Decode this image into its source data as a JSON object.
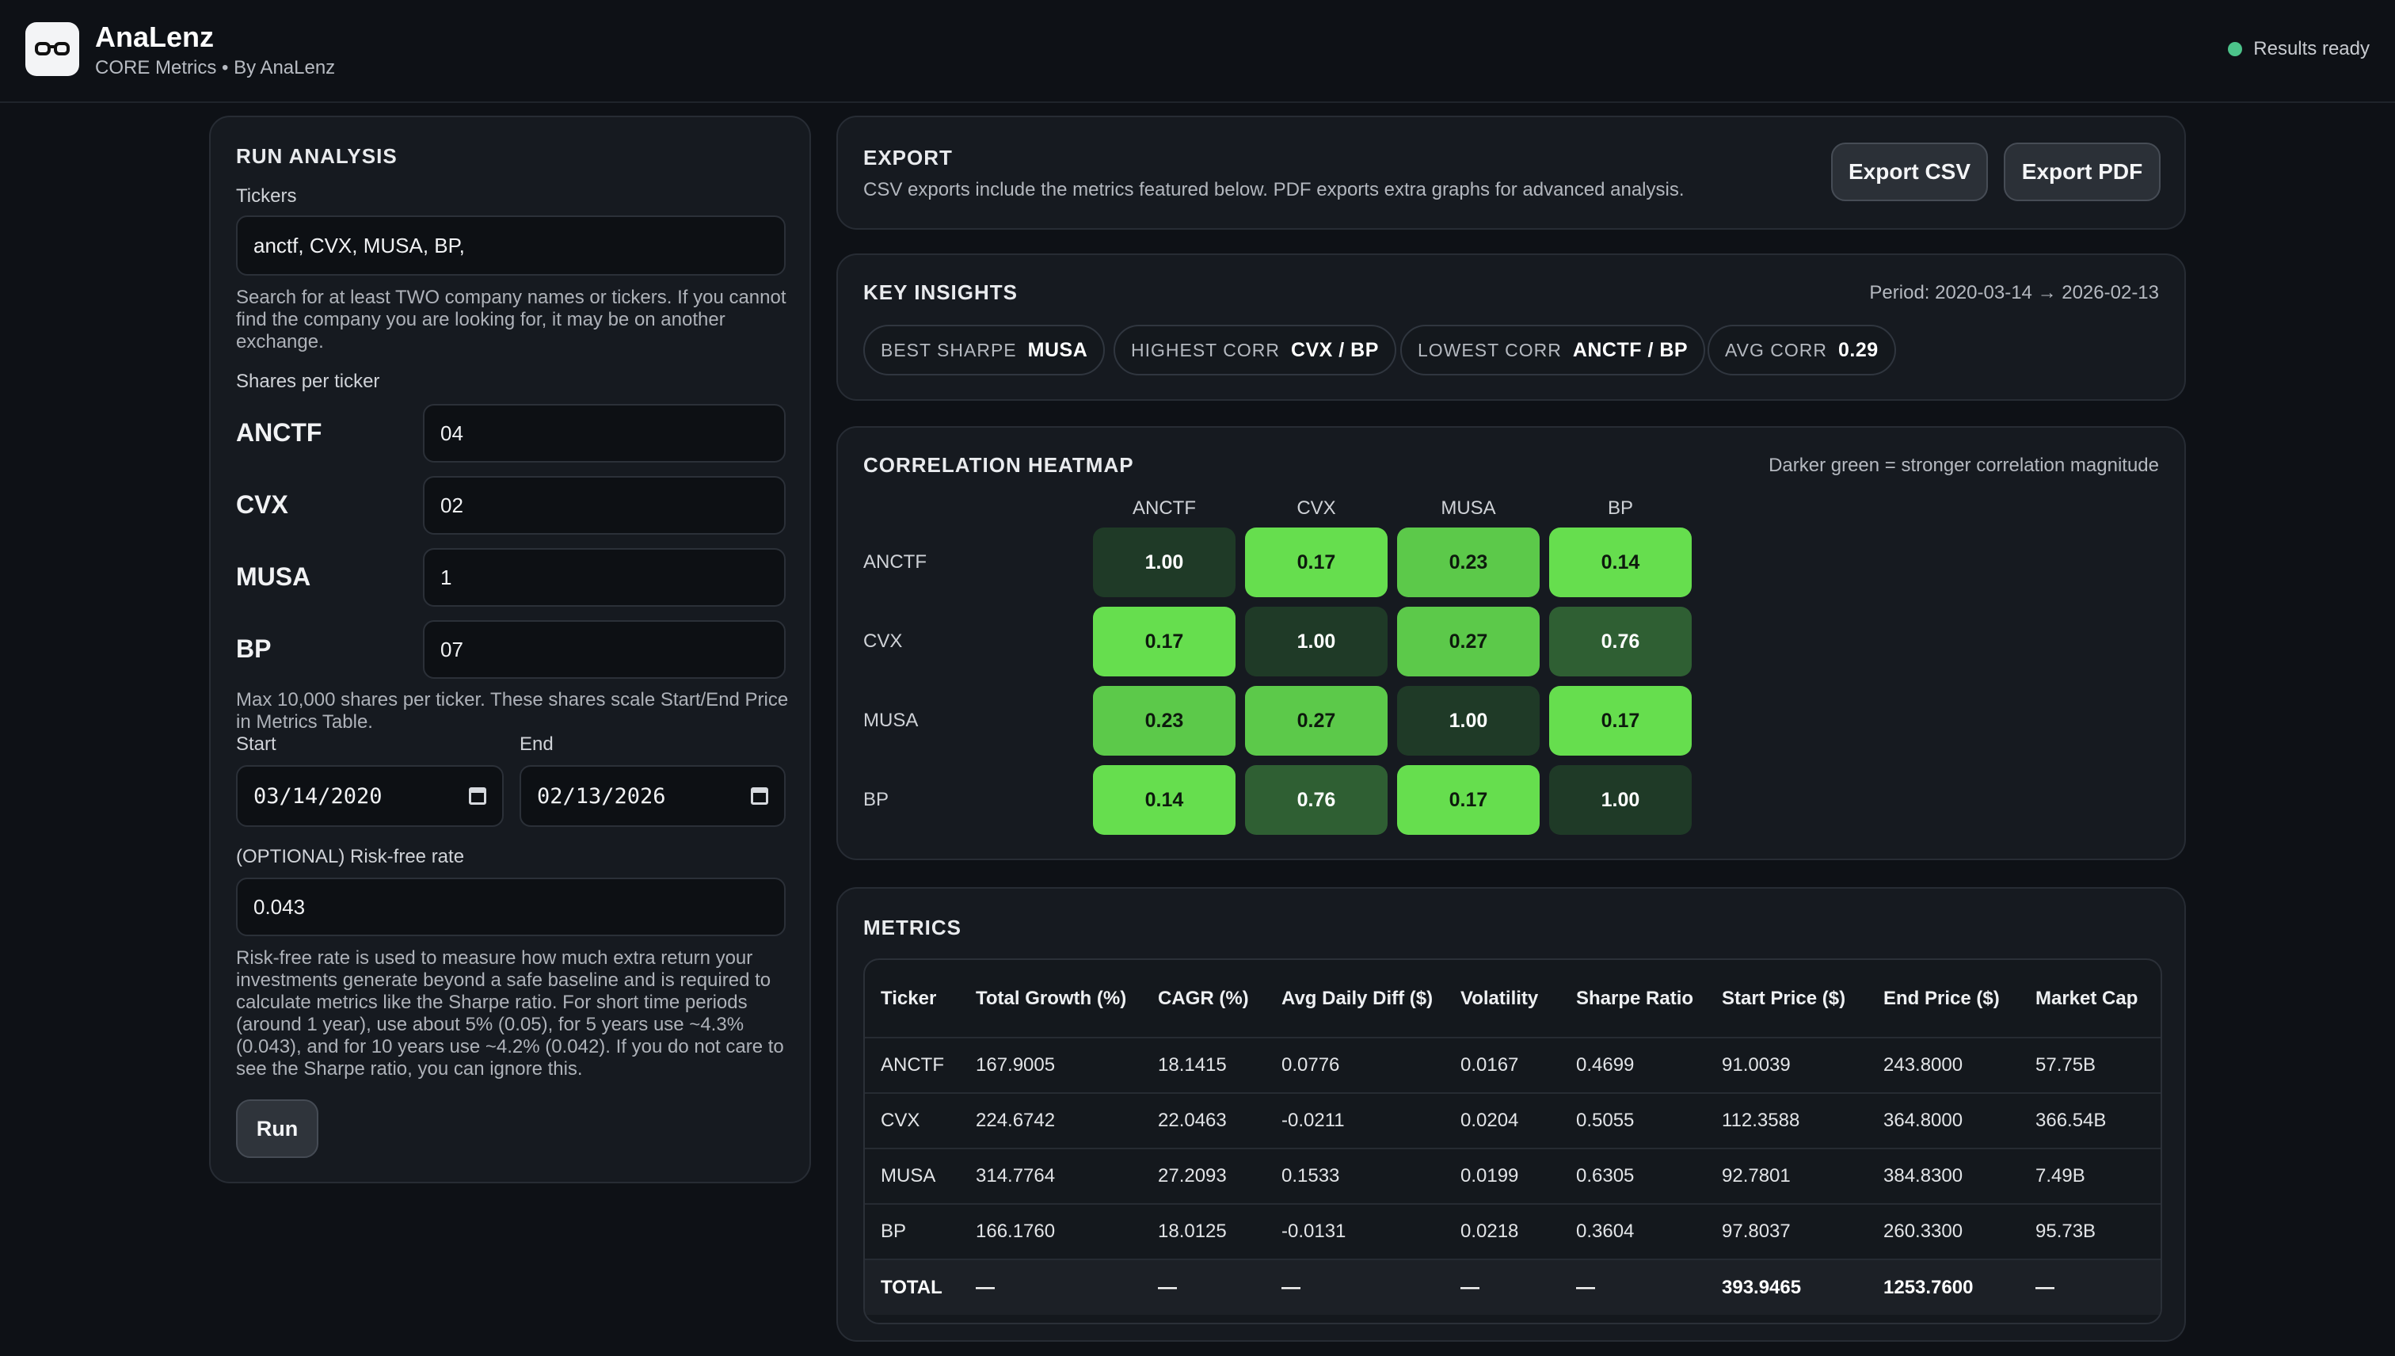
{
  "app": {
    "title": "AnaLenz",
    "subtitle": "CORE Metrics • By AnaLenz",
    "status": "Results ready",
    "logo_icon": "glasses-icon"
  },
  "run": {
    "title": "RUN ANALYSIS",
    "tickers_label": "Tickers",
    "tickers_value": "anctf, CVX, MUSA, BP,",
    "tickers_help": "Search for at least TWO company names or tickers. If you cannot find the company you are looking for, it may be on another exchange.",
    "shares_label": "Shares per ticker",
    "shares": [
      {
        "ticker": "ANCTF",
        "value": "04"
      },
      {
        "ticker": "CVX",
        "value": "02"
      },
      {
        "ticker": "MUSA",
        "value": "1"
      },
      {
        "ticker": "BP",
        "value": "07"
      }
    ],
    "shares_help": "Max 10,000 shares per ticker. These shares scale Start/End Price in Metrics Table.",
    "start_label": "Start",
    "start_value": "03/14/2020",
    "end_label": "End",
    "end_value": "02/13/2026",
    "rf_label": "(OPTIONAL) Risk-free rate",
    "rf_value": "0.043",
    "rf_help": "Risk-free rate is used to measure how much extra return your investments generate beyond a safe baseline and is required to calculate metrics like the Sharpe ratio. For short time periods (around 1 year), use about 5% (0.05), for 5 years use ~4.3% (0.043), and for 10 years use ~4.2% (0.042). If you do not care to see the Sharpe ratio, you can ignore this.",
    "run_label": "Run"
  },
  "export": {
    "title": "EXPORT",
    "desc": "CSV exports include the metrics featured below. PDF exports extra graphs for advanced analysis.",
    "csv_label": "Export CSV",
    "pdf_label": "Export PDF"
  },
  "insights": {
    "title": "KEY INSIGHTS",
    "period": "Period: 2020-03-14 → 2026-02-13",
    "chips": [
      {
        "label": "BEST SHARPE",
        "value": "MUSA"
      },
      {
        "label": "HIGHEST CORR",
        "value": "CVX / BP"
      },
      {
        "label": "LOWEST CORR",
        "value": "ANCTF / BP"
      },
      {
        "label": "AVG CORR",
        "value": "0.29"
      }
    ]
  },
  "heatmap": {
    "title": "CORRELATION HEATMAP",
    "note": "Darker green = stronger correlation magnitude",
    "labels": [
      "ANCTF",
      "CVX",
      "MUSA",
      "BP"
    ],
    "values": [
      [
        "1.00",
        "0.17",
        "0.23",
        "0.14"
      ],
      [
        "0.17",
        "1.00",
        "0.27",
        "0.76"
      ],
      [
        "0.23",
        "0.27",
        "1.00",
        "0.17"
      ],
      [
        "0.14",
        "0.76",
        "0.17",
        "1.00"
      ]
    ],
    "colors": {
      "diag": "#1f3a27",
      "strong": "#2f5f33",
      "mid": "#5cc94a",
      "light": "#66de4e"
    }
  },
  "metrics": {
    "title": "METRICS",
    "columns": [
      "Ticker",
      "Total Growth (%)",
      "CAGR (%)",
      "Avg Daily Diff ($)",
      "Volatility",
      "Sharpe Ratio",
      "Start Price ($)",
      "End Price ($)",
      "Market Cap"
    ],
    "rows": [
      [
        "ANCTF",
        "167.9005",
        "18.1415",
        "0.0776",
        "0.0167",
        "0.4699",
        "91.0039",
        "243.8000",
        "57.75B"
      ],
      [
        "CVX",
        "224.6742",
        "22.0463",
        "-0.0211",
        "0.0204",
        "0.5055",
        "112.3588",
        "364.8000",
        "366.54B"
      ],
      [
        "MUSA",
        "314.7764",
        "27.2093",
        "0.1533",
        "0.0199",
        "0.6305",
        "92.7801",
        "384.8300",
        "7.49B"
      ],
      [
        "BP",
        "166.1760",
        "18.0125",
        "-0.0131",
        "0.0218",
        "0.3604",
        "97.8037",
        "260.3300",
        "95.73B"
      ]
    ],
    "total": [
      "TOTAL",
      "—",
      "—",
      "—",
      "—",
      "—",
      "393.9465",
      "1253.7600",
      "—"
    ]
  }
}
